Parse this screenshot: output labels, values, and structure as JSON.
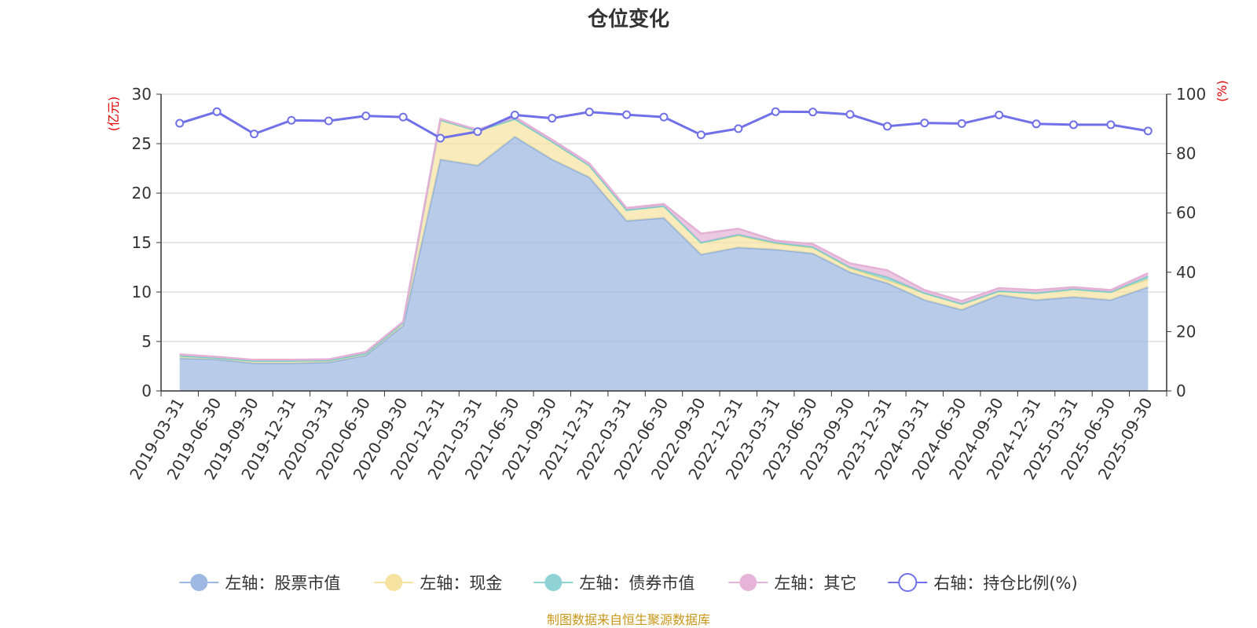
{
  "chart_data": {
    "type": "area",
    "title": "仓位变化",
    "left_unit": "(亿元)",
    "right_unit": "(%)",
    "ylim_left": [
      0,
      30
    ],
    "ylim_right": [
      0,
      100
    ],
    "yticks_left": [
      "0",
      "5",
      "10",
      "15",
      "20",
      "25",
      "30"
    ],
    "yticks_right": [
      "0",
      "20",
      "40",
      "60",
      "80",
      "100"
    ],
    "categories": [
      "2019-03-31",
      "2019-06-30",
      "2019-09-30",
      "2019-12-31",
      "2020-03-31",
      "2020-06-30",
      "2020-09-30",
      "2020-12-31",
      "2021-03-31",
      "2021-06-30",
      "2021-09-30",
      "2021-12-31",
      "2022-03-31",
      "2022-06-30",
      "2022-09-30",
      "2022-12-31",
      "2023-03-31",
      "2023-06-30",
      "2023-09-30",
      "2023-12-31",
      "2024-03-31",
      "2024-06-30",
      "2024-09-30",
      "2024-12-31",
      "2025-03-31",
      "2025-06-30",
      "2025-09-30"
    ],
    "stacked_series": [
      {
        "name": "左轴：股票市值",
        "axis": "left",
        "color": "#9db8e2",
        "values": [
          3.3,
          3.2,
          2.8,
          2.8,
          2.9,
          3.6,
          6.6,
          23.4,
          22.8,
          25.7,
          23.4,
          21.6,
          17.2,
          17.5,
          13.8,
          14.5,
          14.3,
          13.9,
          12.0,
          10.9,
          9.2,
          8.2,
          9.7,
          9.2,
          9.5,
          9.2,
          10.5
        ]
      },
      {
        "name": "左轴：现金",
        "axis": "left",
        "color": "#f6e3a1",
        "values": [
          0.25,
          0.15,
          0.25,
          0.25,
          0.2,
          0.2,
          0.3,
          4.0,
          3.5,
          1.8,
          1.8,
          1.2,
          1.1,
          1.2,
          1.2,
          1.2,
          0.6,
          0.6,
          0.4,
          0.3,
          0.7,
          0.6,
          0.4,
          0.7,
          0.8,
          0.8,
          0.8
        ]
      },
      {
        "name": "左轴：债券市值",
        "axis": "left",
        "color": "#8fd3d6",
        "values": [
          0,
          0,
          0,
          0,
          0,
          0,
          0,
          0,
          0,
          0,
          0,
          0,
          0,
          0,
          0,
          0.1,
          0.1,
          0.05,
          0.1,
          0.3,
          0,
          0,
          0,
          0,
          0,
          0,
          0.3
        ]
      },
      {
        "name": "左轴：其它",
        "axis": "left",
        "color": "#e5b4d8",
        "values": [
          0.15,
          0.1,
          0.1,
          0.1,
          0.1,
          0.15,
          0.1,
          0.1,
          0.1,
          0.2,
          0.2,
          0.2,
          0.2,
          0.2,
          0.9,
          0.6,
          0.2,
          0.3,
          0.4,
          0.7,
          0.3,
          0.3,
          0.3,
          0.3,
          0.2,
          0.2,
          0.3
        ]
      }
    ],
    "line_series": {
      "name": "右轴：持仓比例(%)",
      "axis": "right",
      "color": "#7071e8",
      "values": [
        90.2,
        94.1,
        86.6,
        91.2,
        91.0,
        92.7,
        92.3,
        85.2,
        87.4,
        93.0,
        91.9,
        94.0,
        93.1,
        92.3,
        86.3,
        88.4,
        94.1,
        94.0,
        93.2,
        89.2,
        90.3,
        90.1,
        93.0,
        90.0,
        89.7,
        89.7,
        87.6
      ]
    },
    "legend": [
      "左轴：股票市值",
      "左轴：现金",
      "左轴：债券市值",
      "左轴：其它",
      "右轴：持仓比例(%)"
    ]
  },
  "source_text": "制图数据来自恒生聚源数据库"
}
